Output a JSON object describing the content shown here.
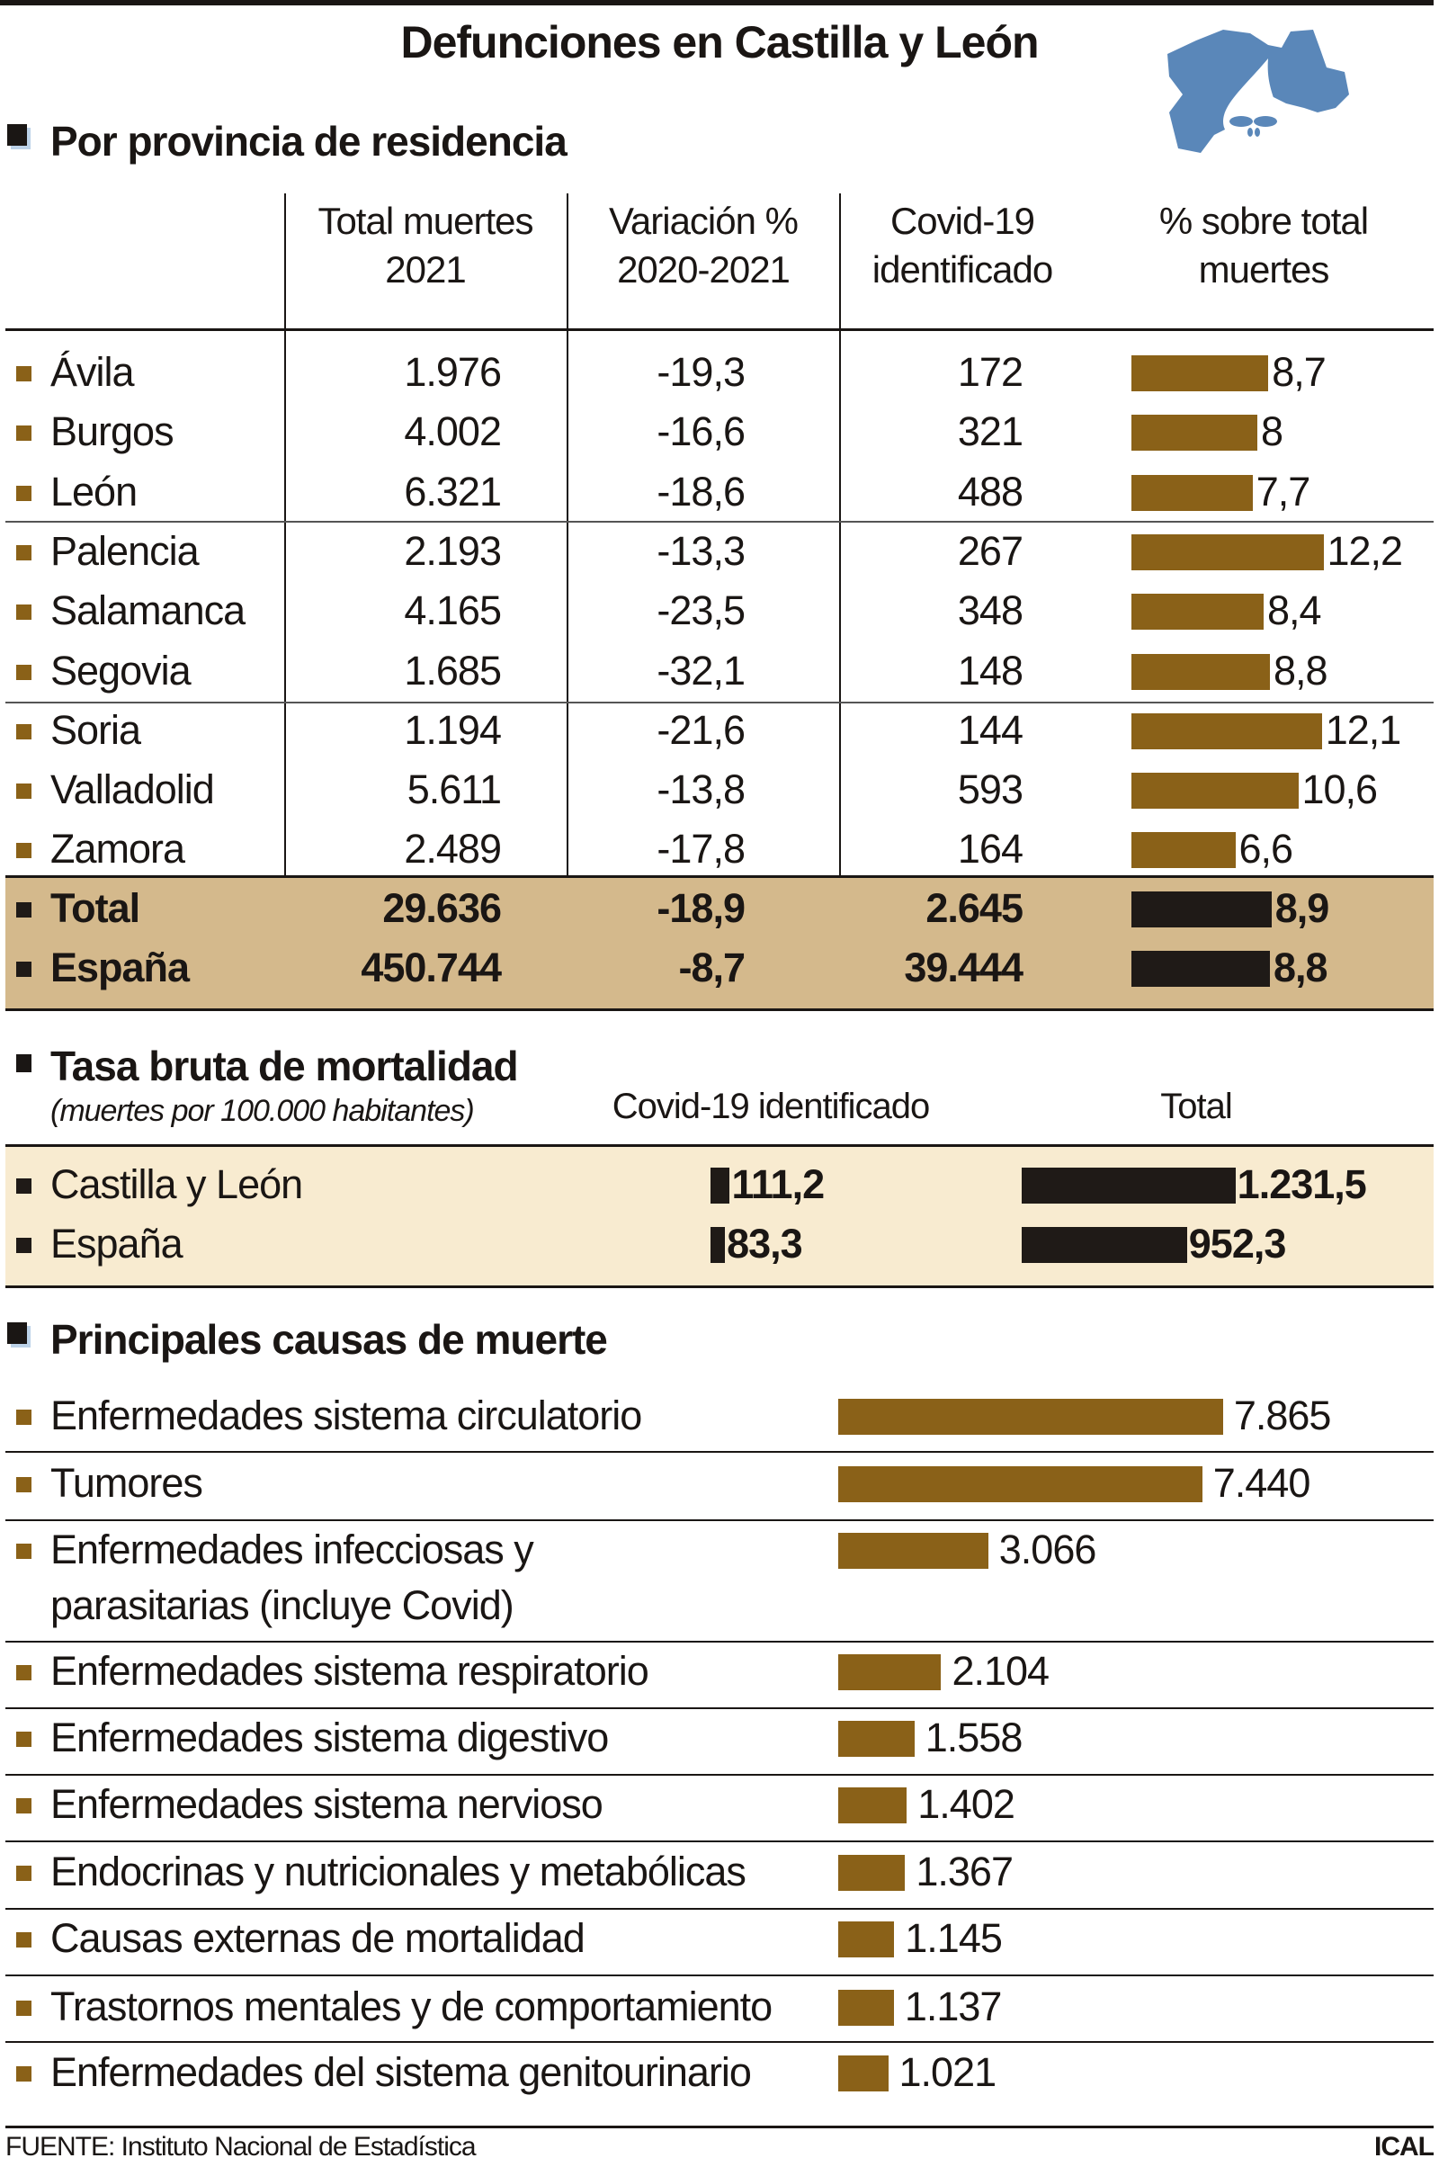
{
  "title": "Defunciones en Castilla y León",
  "colors": {
    "bar": "#8a6118",
    "bar_total": "#1f1a17",
    "total_band": "#d4b98c",
    "rate_band": "#f8ebd0",
    "logo": "#5a87b9"
  },
  "logo_icon": "castilla-leon-map-skull-icon",
  "section1": {
    "heading": "Por provincia de residencia",
    "columns": [
      "Total muertes 2021",
      "Variación % 2020-2021",
      "Covid-19 identificado",
      "% sobre total muertes"
    ],
    "col_lines": [
      [
        "Total muertes",
        "2021"
      ],
      [
        "Variación %",
        "2020-2021"
      ],
      [
        "Covid-19",
        "identificado"
      ],
      [
        "% sobre total",
        "muertes"
      ]
    ]
  },
  "chart_data": [
    {
      "type": "table",
      "title": "Por provincia de residencia",
      "columns": [
        "Total muertes 2021",
        "Variación % 2020-2021",
        "Covid-19 identificado",
        "% sobre total muertes"
      ],
      "rows": [
        {
          "name": "Ávila",
          "total": "1.976",
          "variation": "-19,3",
          "covid": "172",
          "pct": 8.7,
          "pct_label": "8,7"
        },
        {
          "name": "Burgos",
          "total": "4.002",
          "variation": "-16,6",
          "covid": "321",
          "pct": 8,
          "pct_label": "8"
        },
        {
          "name": "León",
          "total": "6.321",
          "variation": "-18,6",
          "covid": "488",
          "pct": 7.7,
          "pct_label": "7,7"
        },
        {
          "name": "Palencia",
          "total": "2.193",
          "variation": "-13,3",
          "covid": "267",
          "pct": 12.2,
          "pct_label": "12,2"
        },
        {
          "name": "Salamanca",
          "total": "4.165",
          "variation": "-23,5",
          "covid": "348",
          "pct": 8.4,
          "pct_label": "8,4"
        },
        {
          "name": "Segovia",
          "total": "1.685",
          "variation": "-32,1",
          "covid": "148",
          "pct": 8.8,
          "pct_label": "8,8"
        },
        {
          "name": "Soria",
          "total": "1.194",
          "variation": "-21,6",
          "covid": "144",
          "pct": 12.1,
          "pct_label": "12,1"
        },
        {
          "name": "Valladolid",
          "total": "5.611",
          "variation": "-13,8",
          "covid": "593",
          "pct": 10.6,
          "pct_label": "10,6"
        },
        {
          "name": "Zamora",
          "total": "2.489",
          "variation": "-17,8",
          "covid": "164",
          "pct": 6.6,
          "pct_label": "6,6"
        }
      ],
      "summary_rows": [
        {
          "name": "Total",
          "total": "29.636",
          "variation": "-18,9",
          "covid": "2.645",
          "pct": 8.9,
          "pct_label": "8,9"
        },
        {
          "name": "España",
          "total": "450.744",
          "variation": "-8,7",
          "covid": "39.444",
          "pct": 8.8,
          "pct_label": "8,8"
        }
      ]
    },
    {
      "type": "bar",
      "title": "Tasa bruta de mortalidad",
      "subtitle": "(muertes por 100.000 habitantes)",
      "categories": [
        "Castilla y León",
        "España"
      ],
      "series": [
        {
          "name": "Covid-19 identificado",
          "values": [
            111.2,
            83.3
          ],
          "labels": [
            "111,2",
            "83,3"
          ]
        },
        {
          "name": "Total",
          "values": [
            1231.5,
            952.3
          ],
          "labels": [
            "1.231,5",
            "952,3"
          ]
        }
      ]
    },
    {
      "type": "bar",
      "title": "Principales causas de muerte",
      "categories": [
        "Enfermedades sistema circulatorio",
        "Tumores",
        "Enfermedades infecciosas y\nparasitarias (incluye Covid)",
        "Enfermedades sistema respiratorio",
        "Enfermedades sistema digestivo",
        "Enfermedades sistema nervioso",
        "Endocrinas y nutricionales y metabólicas",
        "Causas externas de mortalidad",
        "Trastornos mentales y de comportamiento",
        "Enfermedades del sistema genitourinario"
      ],
      "values": [
        7865,
        7440,
        3066,
        2104,
        1558,
        1402,
        1367,
        1145,
        1137,
        1021
      ],
      "labels": [
        "7.865",
        "7.440",
        "3.066",
        "2.104",
        "1.558",
        "1.402",
        "1.367",
        "1.145",
        "1.137",
        "1.021"
      ]
    }
  ],
  "footer": {
    "source": "FUENTE: Instituto Nacional de Estadística",
    "credit": "ICAL"
  }
}
